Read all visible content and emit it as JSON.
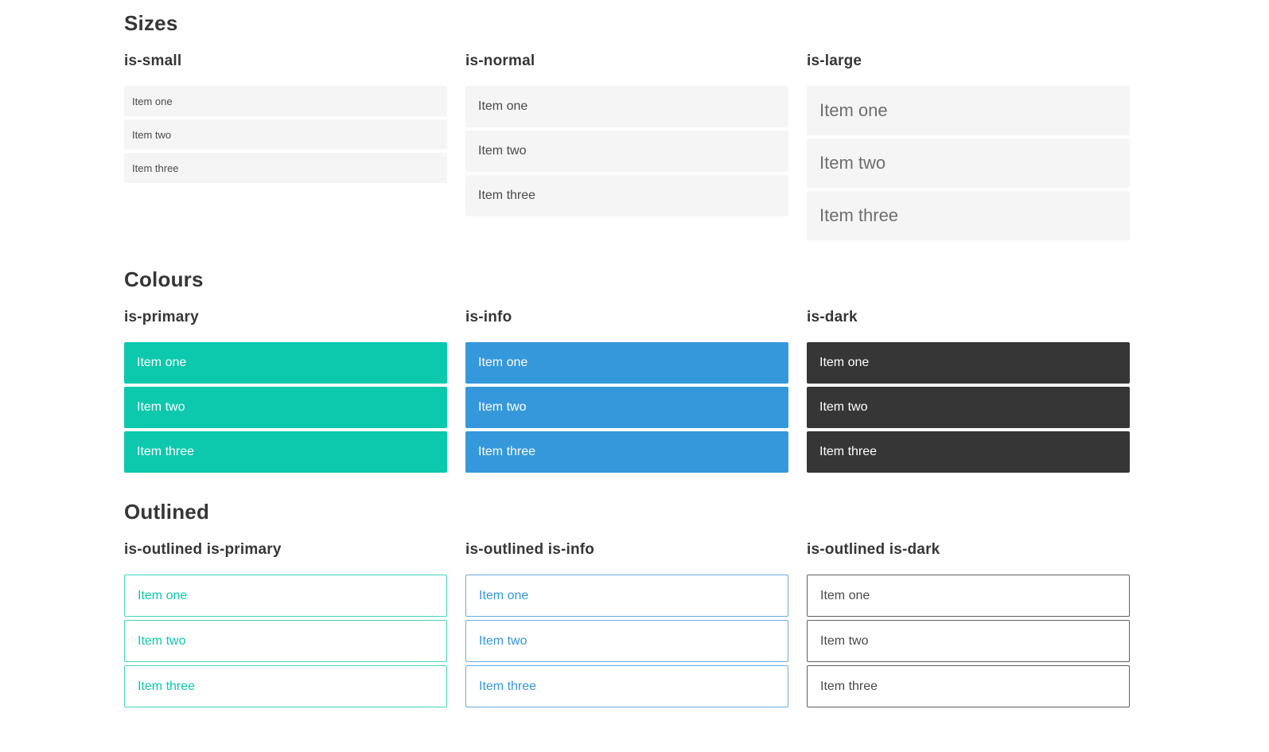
{
  "colors": {
    "primary": "#0cc8ac",
    "primary_border": "#45d5bd",
    "info": "#3598db",
    "info_border": "#6aabdf",
    "dark": "#363636",
    "dark_border": "#5f5f5f",
    "item_bg": "#f5f5f5",
    "item_text": "#4a4a4a",
    "item_text_large": "#6e6e6e",
    "heading_text": "#363636"
  },
  "sections": [
    {
      "title": "Sizes",
      "groups": [
        {
          "label": "is-small",
          "items": [
            "Item one",
            "Item two",
            "Item three"
          ]
        },
        {
          "label": "is-normal",
          "items": [
            "Item one",
            "Item two",
            "Item three"
          ]
        },
        {
          "label": "is-large",
          "items": [
            "Item one",
            "Item two",
            "Item three"
          ]
        }
      ]
    },
    {
      "title": "Colours",
      "groups": [
        {
          "label": "is-primary",
          "items": [
            "Item one",
            "Item two",
            "Item three"
          ]
        },
        {
          "label": "is-info",
          "items": [
            "Item one",
            "Item two",
            "Item three"
          ]
        },
        {
          "label": "is-dark",
          "items": [
            "Item one",
            "Item two",
            "Item three"
          ]
        }
      ]
    },
    {
      "title": "Outlined",
      "groups": [
        {
          "label": "is-outlined is-primary",
          "items": [
            "Item one",
            "Item two",
            "Item three"
          ]
        },
        {
          "label": "is-outlined is-info",
          "items": [
            "Item one",
            "Item two",
            "Item three"
          ]
        },
        {
          "label": "is-outlined is-dark",
          "items": [
            "Item one",
            "Item two",
            "Item three"
          ]
        }
      ]
    }
  ]
}
